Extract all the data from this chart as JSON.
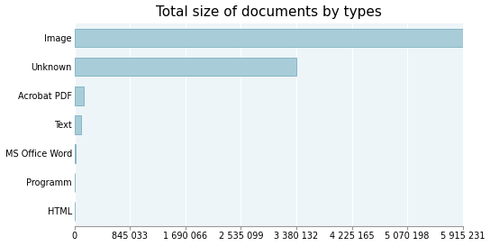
{
  "title": "Total size of documents by types",
  "categories": [
    "HTML",
    "Programm",
    "MS Office Word",
    "Text",
    "Acrobat PDF",
    "Unknown",
    "Image"
  ],
  "values": [
    0,
    5000,
    15000,
    100000,
    140000,
    3380132,
    5915231
  ],
  "bar_color": "#a8cdd8",
  "bar_edge_color": "#7aafc0",
  "background_color": "#ffffff",
  "plot_bg_color": "#eef5f8",
  "grid_color": "#ffffff",
  "xlim": [
    0,
    5915231
  ],
  "xtick_values": [
    0,
    845033,
    1690066,
    2535099,
    3380132,
    4225165,
    5070198,
    5915231
  ],
  "title_fontsize": 11,
  "tick_fontsize": 7,
  "bar_height": 0.65
}
